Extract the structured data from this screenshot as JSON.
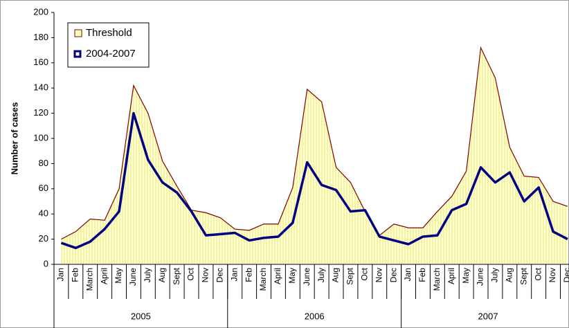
{
  "chart_data": {
    "type": "line",
    "y_label": "Number of cases",
    "categories": [
      "Jan",
      "Feb",
      "March",
      "April",
      "May",
      "June",
      "July",
      "Aug",
      "Sept",
      "Oct",
      "Nov",
      "Dec",
      "Jan",
      "Feb",
      "March",
      "April",
      "May",
      "June",
      "July",
      "Aug",
      "Sept",
      "Oct",
      "Nov",
      "Dec",
      "Jan",
      "Feb",
      "March",
      "April",
      "May",
      "June",
      "July",
      "Aug",
      "Sept",
      "Oct",
      "Nov",
      "Dec"
    ],
    "years": [
      "2005",
      "2006",
      "2007"
    ],
    "series": [
      {
        "name": "Threshold",
        "color": "#800000",
        "fill": "#ffffc0",
        "area": true,
        "values": [
          20,
          26,
          36,
          35,
          60,
          142,
          120,
          82,
          62,
          43,
          41,
          37,
          28,
          27,
          32,
          32,
          61,
          139,
          129,
          77,
          65,
          42,
          23,
          32,
          29,
          29,
          42,
          54,
          74,
          172,
          148,
          93,
          70,
          69,
          50,
          46
        ]
      },
      {
        "name": "2004-2007",
        "color": "#000080",
        "area": false,
        "values": [
          17,
          13,
          18,
          28,
          42,
          120,
          83,
          65,
          57,
          42,
          23,
          24,
          25,
          19,
          21,
          22,
          33,
          81,
          63,
          59,
          42,
          43,
          22,
          19,
          16,
          22,
          23,
          43,
          48,
          77,
          65,
          73,
          50,
          61,
          26,
          20
        ]
      }
    ],
    "ylim": [
      0,
      200
    ],
    "yticks": [
      0,
      20,
      40,
      60,
      80,
      100,
      120,
      140,
      160,
      180,
      200
    ],
    "legend": "top-left"
  }
}
